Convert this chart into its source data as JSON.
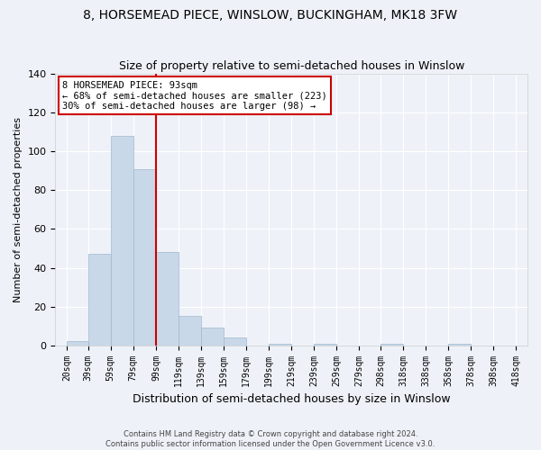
{
  "title": "8, HORSEMEAD PIECE, WINSLOW, BUCKINGHAM, MK18 3FW",
  "subtitle": "Size of property relative to semi-detached houses in Winslow",
  "xlabel": "Distribution of semi-detached houses by size in Winslow",
  "ylabel": "Number of semi-detached properties",
  "bar_values": [
    2,
    47,
    108,
    91,
    48,
    15,
    9,
    4,
    0,
    1,
    0,
    1,
    0,
    0,
    1,
    0,
    0,
    1
  ],
  "bar_color": "#c8d8e8",
  "bar_edge_color": "#a0b8d0",
  "annotation_title": "8 HORSEMEAD PIECE: 93sqm",
  "annotation_line1": "← 68% of semi-detached houses are smaller (223)",
  "annotation_line2": "30% of semi-detached houses are larger (98) →",
  "annotation_box_color": "#ffffff",
  "annotation_box_edge": "#cc0000",
  "vline_color": "#cc0000",
  "ylim": [
    0,
    140
  ],
  "yticks": [
    0,
    20,
    40,
    60,
    80,
    100,
    120,
    140
  ],
  "xtick_labels": [
    "20sqm",
    "39sqm",
    "59sqm",
    "79sqm",
    "99sqm",
    "119sqm",
    "139sqm",
    "159sqm",
    "179sqm",
    "199sqm",
    "219sqm",
    "239sqm",
    "259sqm",
    "279sqm",
    "298sqm",
    "318sqm",
    "338sqm",
    "358sqm",
    "378sqm",
    "398sqm",
    "418sqm"
  ],
  "footer1": "Contains HM Land Registry data © Crown copyright and database right 2024.",
  "footer2": "Contains public sector information licensed under the Open Government Licence v3.0.",
  "bg_color": "#eef2f8",
  "grid_color": "#ffffff",
  "title_fontsize": 10,
  "subtitle_fontsize": 9,
  "xlabel_fontsize": 9,
  "ylabel_fontsize": 8,
  "footer_fontsize": 6,
  "tick_fontsize": 7,
  "annot_fontsize": 7.5
}
